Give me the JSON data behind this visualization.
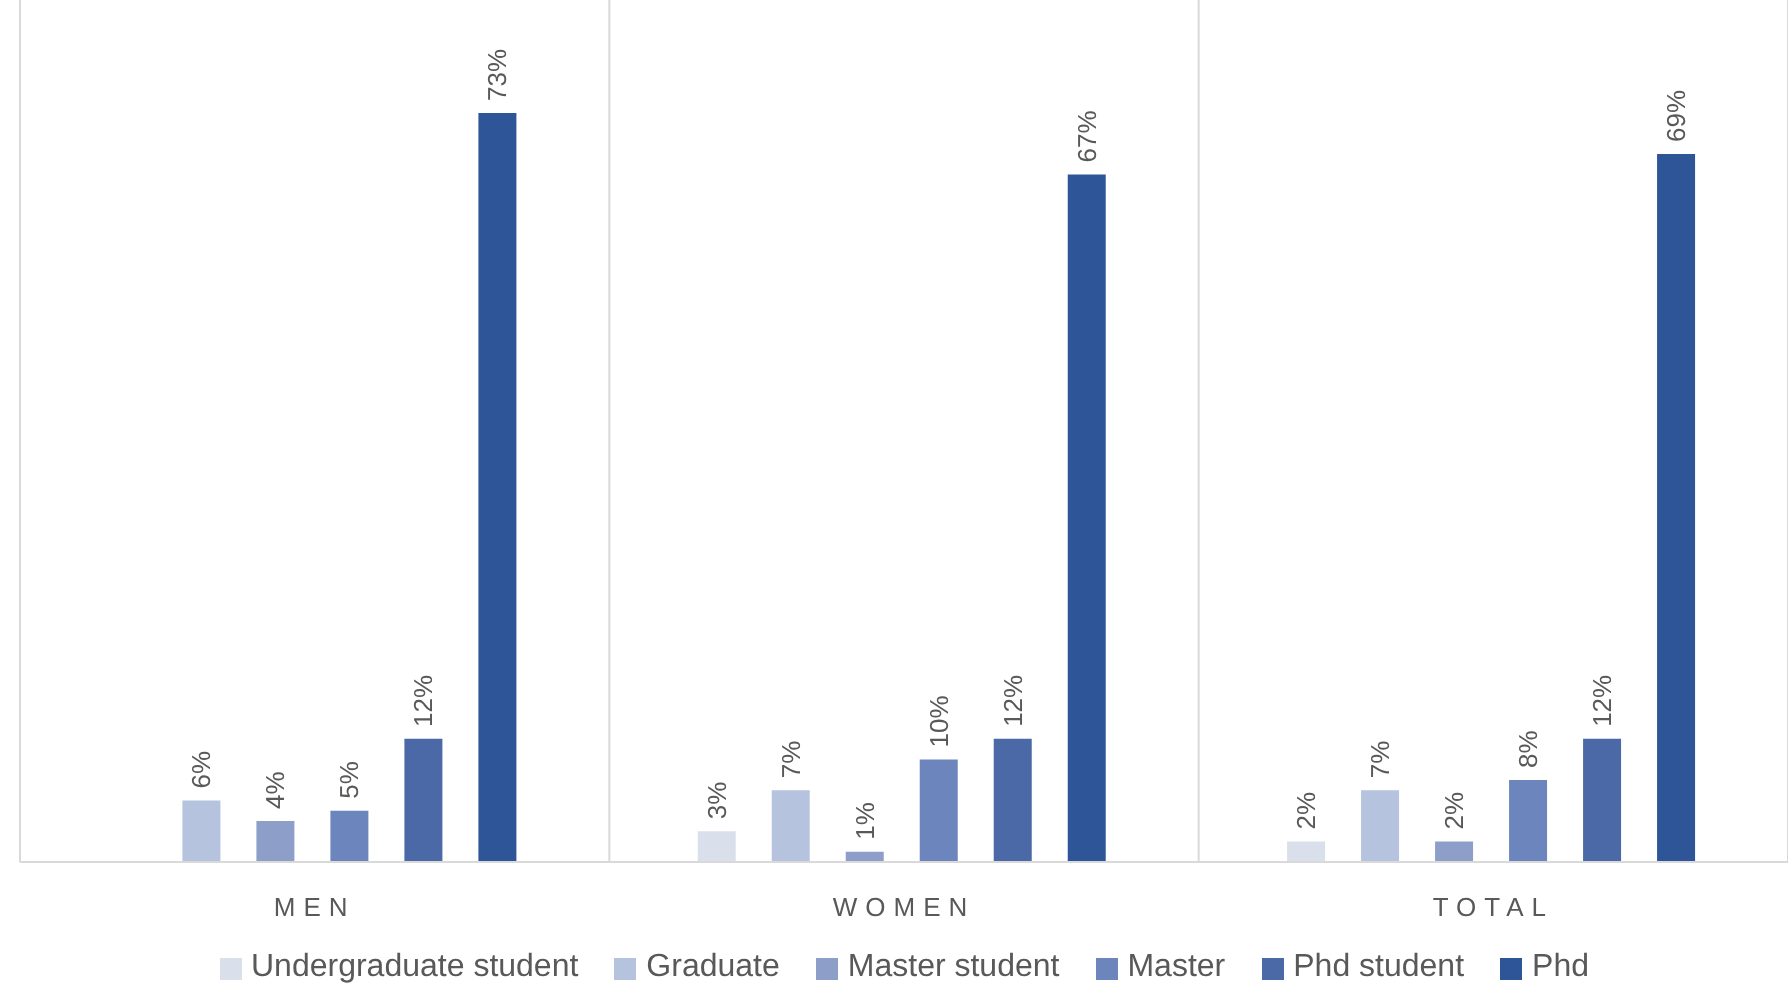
{
  "chart_data": {
    "type": "bar",
    "categories": [
      "MEN",
      "WOMEN",
      "TOTAL"
    ],
    "series": [
      {
        "name": "Undergraduate student",
        "color": "#d9e0ec",
        "values": [
          null,
          3,
          2
        ],
        "value_labels": [
          null,
          "3%",
          "2%"
        ]
      },
      {
        "name": "Graduate",
        "color": "#b6c3de",
        "values": [
          6,
          7,
          7
        ],
        "value_labels": [
          "6%",
          "7%",
          "7%"
        ]
      },
      {
        "name": "Master student",
        "color": "#8d9fc9",
        "values": [
          4,
          1,
          2
        ],
        "value_labels": [
          "4%",
          "1%",
          "2%"
        ]
      },
      {
        "name": "Master",
        "color": "#6c86bd",
        "values": [
          5,
          10,
          8
        ],
        "value_labels": [
          "5%",
          "10%",
          "8%"
        ]
      },
      {
        "name": "Phd student",
        "color": "#4a69a6",
        "values": [
          12,
          12,
          12
        ],
        "value_labels": [
          "12%",
          "12%",
          "12%"
        ]
      },
      {
        "name": "Phd",
        "color": "#2e5597",
        "values": [
          73,
          67,
          69
        ],
        "value_labels": [
          "73%",
          "67%",
          "69%"
        ]
      }
    ],
    "ylim": [
      0,
      84
    ],
    "grid": "x",
    "legend": "bottom"
  }
}
